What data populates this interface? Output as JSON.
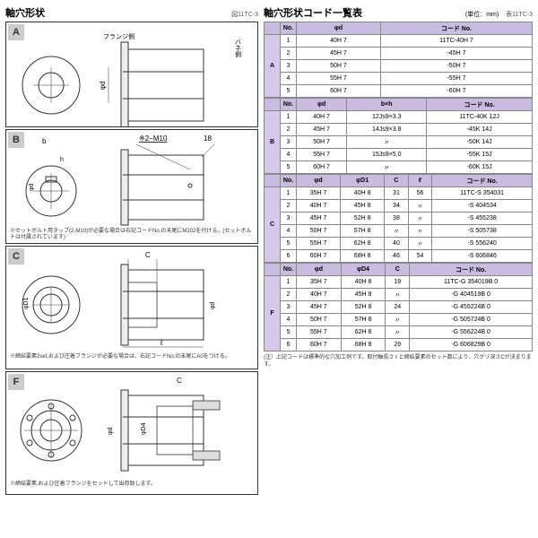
{
  "left": {
    "title": "軸穴形状",
    "subtitle": "図11TC-3",
    "sections": {
      "A": {
        "labels": [
          "フランジ側",
          "バネ側",
          "φd"
        ]
      },
      "B": {
        "labels": [
          "b",
          "h",
          "φd",
          "※2−M10",
          "18"
        ],
        "note": "※セットボルト用タップ(2-M10)が必要な場合は右記コードNo.の末尾にM102を付ける。(セットボルトは付属されています)"
      },
      "C": {
        "labels": [
          "C",
          "φD1",
          "φd",
          "ℓ"
        ],
        "note": "※締結要素2set,および圧着フランジが必要な場合は、右記コードNo.の末尾にA0をつける。"
      },
      "F": {
        "labels": [
          "C",
          "φd",
          "φD4"
        ],
        "note": "※締結要素,および圧着フランジをセットして出荷致します。"
      }
    }
  },
  "right": {
    "title": "軸穴形状コード一覧表",
    "unit": "(単位：mm)",
    "subtitle": "表11TC-3",
    "groups": [
      {
        "label": "A",
        "headers": [
          "No.",
          "φd",
          "コード No."
        ],
        "rows": [
          [
            "1",
            "40H 7",
            "11TC-40H 7"
          ],
          [
            "2",
            "45H 7",
            "-45H 7"
          ],
          [
            "3",
            "50H 7",
            "-50H 7"
          ],
          [
            "4",
            "55H 7",
            "-55H 7"
          ],
          [
            "5",
            "60H 7",
            "-60H 7"
          ]
        ]
      },
      {
        "label": "B",
        "headers": [
          "No.",
          "φd",
          "b×h",
          "コード No."
        ],
        "rows": [
          [
            "1",
            "40H 7",
            "12Js9×3.3",
            "11TC-40K 12J"
          ],
          [
            "2",
            "45H 7",
            "14Js9×3.8",
            "-45K 14J"
          ],
          [
            "3",
            "50H 7",
            "〃",
            "-50K 14J"
          ],
          [
            "4",
            "55H 7",
            "15Js9×5.0",
            "-55K 15J"
          ],
          [
            "5",
            "60H 7",
            "〃",
            "-60K 15J"
          ]
        ]
      },
      {
        "label": "C",
        "headers": [
          "No.",
          "φd",
          "φD1",
          "C",
          "ℓ",
          "コード No."
        ],
        "rows": [
          [
            "1",
            "35H 7",
            "40H 8",
            "31",
            "56",
            "11TC-S 354031"
          ],
          [
            "2",
            "40H 7",
            "45H 8",
            "34",
            "〃",
            "-S 404534"
          ],
          [
            "3",
            "45H 7",
            "52H 8",
            "38",
            "〃",
            "-S 455238"
          ],
          [
            "4",
            "50H 7",
            "57H 8",
            "〃",
            "〃",
            "-S 505738"
          ],
          [
            "5",
            "55H 7",
            "62H 8",
            "40",
            "〃",
            "-S 556240"
          ],
          [
            "6",
            "60H 7",
            "68H 8",
            "46",
            "54",
            "-S 606846"
          ]
        ]
      },
      {
        "label": "F",
        "headers": [
          "No.",
          "φd",
          "φD4",
          "C",
          "コード No."
        ],
        "rows": [
          [
            "1",
            "35H 7",
            "40H 8",
            "19",
            "11TC-G 354019B 0"
          ],
          [
            "2",
            "40H 7",
            "45H 8",
            "〃",
            "-G 404519B 0"
          ],
          [
            "3",
            "45H 7",
            "52H 8",
            "24",
            "-G 455224B 0"
          ],
          [
            "4",
            "50H 7",
            "57H 8",
            "〃",
            "-G 505724B 0"
          ],
          [
            "5",
            "55H 7",
            "62H 8",
            "〃",
            "-G 556224B 0"
          ],
          [
            "6",
            "60H 7",
            "68H 8",
            "29",
            "-G 606829B 0"
          ]
        ]
      }
    ],
    "footnote": "(注）上記コードは標準的な穴加工例です。取付軸長さ ℓ と締結要素のセット数により、穴グリ深さCが決まります。"
  },
  "colors": {
    "header_bg": "#d4c9e8",
    "border": "#888"
  }
}
